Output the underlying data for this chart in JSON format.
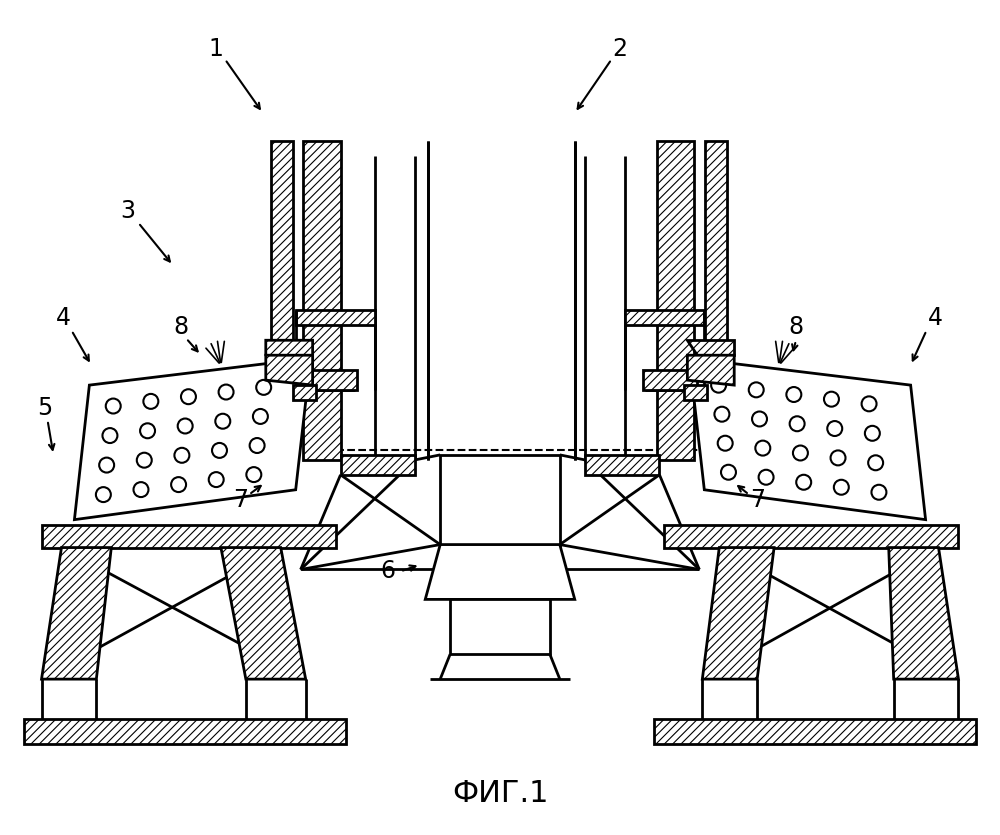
{
  "title": "ФИГ.1",
  "title_fontsize": 22,
  "bg_color": "#ffffff",
  "line_color": "#000000"
}
